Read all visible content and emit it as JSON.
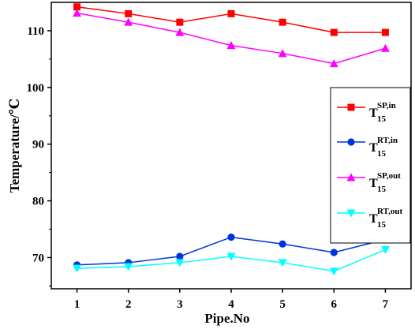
{
  "chart_data": {
    "type": "line",
    "xlabel": "Pipe.No",
    "ylabel": "Temperature/℃",
    "categories": [
      "1",
      "2",
      "3",
      "4",
      "5",
      "6",
      "7"
    ],
    "x": [
      1,
      2,
      3,
      4,
      5,
      6,
      7
    ],
    "xlim": [
      0.5,
      7.5
    ],
    "ylim": [
      64.5,
      115
    ],
    "yticks": [
      70,
      80,
      90,
      100,
      110
    ],
    "grid": false,
    "legend_position": "right",
    "series": [
      {
        "name": "T",
        "sub": "15",
        "sup": "SP,in",
        "color": "#ff0000",
        "marker": "square",
        "values": [
          114.2,
          113.0,
          111.5,
          113.0,
          111.5,
          109.7,
          109.7
        ]
      },
      {
        "name": "T",
        "sub": "15",
        "sup": "RT,in",
        "color": "#0033dd",
        "marker": "circle",
        "values": [
          68.7,
          69.1,
          70.2,
          73.6,
          72.4,
          70.9,
          73.2
        ]
      },
      {
        "name": "T",
        "sub": "15",
        "sup": "SP,out",
        "color": "#ff00ff",
        "marker": "triangle-up",
        "values": [
          113.1,
          111.5,
          109.7,
          107.4,
          106.0,
          104.2,
          106.9
        ]
      },
      {
        "name": "T",
        "sub": "15",
        "sup": "RT,out",
        "color": "#00ffff",
        "marker": "triangle-down",
        "values": [
          68.1,
          68.4,
          69.1,
          70.2,
          69.1,
          67.6,
          71.4
        ]
      }
    ]
  }
}
